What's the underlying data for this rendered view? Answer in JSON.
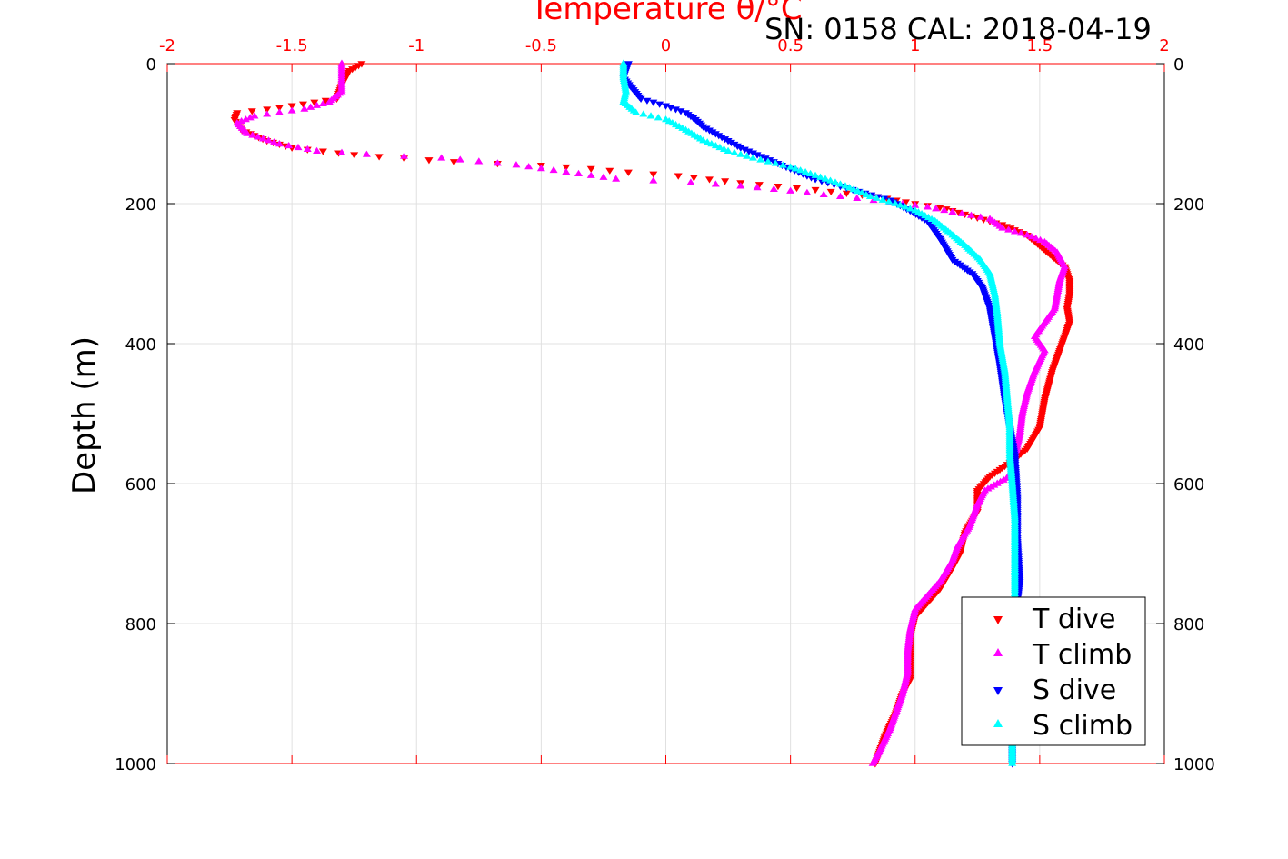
{
  "header": {
    "sn_cal": "SN: 0158  CAL: 2018-04-19"
  },
  "chart_data": {
    "type": "scatter",
    "title": "Temperature θ/°C",
    "xlabel_top": "Temperature θ/°C",
    "ylabel": "Depth (m)",
    "xlim": [
      -2,
      2
    ],
    "ylim": [
      0,
      1000
    ],
    "y_reversed": true,
    "x_ticks": [
      "-2",
      "-1.5",
      "-1",
      "-0.5",
      "0",
      "0.5",
      "1",
      "1.5",
      "2"
    ],
    "y_ticks": [
      "0",
      "200",
      "400",
      "600",
      "800",
      "1000"
    ],
    "grid": true,
    "legend_position": "bottom-right",
    "colors": {
      "axis_top": "#ff0000",
      "t_dive": "#ff0000",
      "t_climb": "#ff00ff",
      "s_dive": "#0000ff",
      "s_climb": "#00ffff"
    },
    "series": [
      {
        "name": "T dive",
        "marker": "triangle-down",
        "color": "#ff0000",
        "points": [
          [
            -1.22,
            0
          ],
          [
            -1.27,
            10
          ],
          [
            -1.3,
            30
          ],
          [
            -1.32,
            50
          ],
          [
            -1.5,
            60
          ],
          [
            -1.6,
            65
          ],
          [
            -1.72,
            70
          ],
          [
            -1.73,
            80
          ],
          [
            -1.7,
            95
          ],
          [
            -1.6,
            110
          ],
          [
            -1.5,
            120
          ],
          [
            -1.25,
            130
          ],
          [
            -0.85,
            140
          ],
          [
            -0.5,
            145
          ],
          [
            -0.3,
            150
          ],
          [
            -0.15,
            155
          ],
          [
            0.05,
            160
          ],
          [
            0.3,
            170
          ],
          [
            0.6,
            180
          ],
          [
            0.85,
            190
          ],
          [
            1.0,
            200
          ],
          [
            1.1,
            205
          ],
          [
            1.25,
            220
          ],
          [
            1.35,
            230
          ],
          [
            1.45,
            245
          ],
          [
            1.5,
            260
          ],
          [
            1.55,
            275
          ],
          [
            1.6,
            290
          ],
          [
            1.62,
            310
          ],
          [
            1.62,
            330
          ],
          [
            1.61,
            350
          ],
          [
            1.62,
            370
          ],
          [
            1.6,
            390
          ],
          [
            1.58,
            410
          ],
          [
            1.55,
            440
          ],
          [
            1.52,
            480
          ],
          [
            1.5,
            520
          ],
          [
            1.45,
            550
          ],
          [
            1.38,
            570
          ],
          [
            1.3,
            590
          ],
          [
            1.25,
            610
          ],
          [
            1.25,
            640
          ],
          [
            1.2,
            670
          ],
          [
            1.18,
            700
          ],
          [
            1.15,
            720
          ],
          [
            1.1,
            750
          ],
          [
            1.05,
            770
          ],
          [
            1.0,
            790
          ],
          [
            0.98,
            820
          ],
          [
            0.98,
            850
          ],
          [
            0.98,
            880
          ],
          [
            0.95,
            900
          ],
          [
            0.92,
            930
          ],
          [
            0.88,
            960
          ],
          [
            0.86,
            980
          ],
          [
            0.84,
            1000
          ]
        ]
      },
      {
        "name": "T climb",
        "marker": "triangle-up",
        "color": "#ff00ff",
        "points": [
          [
            -1.3,
            0
          ],
          [
            -1.3,
            20
          ],
          [
            -1.3,
            40
          ],
          [
            -1.35,
            55
          ],
          [
            -1.45,
            65
          ],
          [
            -1.55,
            70
          ],
          [
            -1.65,
            75
          ],
          [
            -1.72,
            85
          ],
          [
            -1.68,
            100
          ],
          [
            -1.55,
            115
          ],
          [
            -1.4,
            125
          ],
          [
            -1.2,
            130
          ],
          [
            -0.9,
            135
          ],
          [
            -0.6,
            145
          ],
          [
            -0.4,
            155
          ],
          [
            -0.2,
            165
          ],
          [
            0.1,
            170
          ],
          [
            0.3,
            175
          ],
          [
            0.5,
            182
          ],
          [
            0.7,
            190
          ],
          [
            0.9,
            198
          ],
          [
            1.05,
            205
          ],
          [
            1.15,
            212
          ],
          [
            1.3,
            222
          ],
          [
            1.35,
            235
          ],
          [
            1.45,
            245
          ],
          [
            1.52,
            255
          ],
          [
            1.57,
            270
          ],
          [
            1.6,
            290
          ],
          [
            1.58,
            310
          ],
          [
            1.57,
            330
          ],
          [
            1.56,
            350
          ],
          [
            1.52,
            370
          ],
          [
            1.48,
            390
          ],
          [
            1.52,
            410
          ],
          [
            1.48,
            440
          ],
          [
            1.45,
            470
          ],
          [
            1.43,
            500
          ],
          [
            1.42,
            530
          ],
          [
            1.4,
            560
          ],
          [
            1.38,
            590
          ],
          [
            1.28,
            610
          ],
          [
            1.25,
            630
          ],
          [
            1.22,
            660
          ],
          [
            1.17,
            690
          ],
          [
            1.15,
            710
          ],
          [
            1.1,
            740
          ],
          [
            1.05,
            760
          ],
          [
            1.0,
            780
          ],
          [
            0.98,
            810
          ],
          [
            0.97,
            840
          ],
          [
            0.97,
            870
          ],
          [
            0.95,
            900
          ],
          [
            0.93,
            920
          ],
          [
            0.9,
            950
          ],
          [
            0.86,
            980
          ],
          [
            0.83,
            1000
          ]
        ]
      },
      {
        "name": "S dive",
        "marker": "triangle-down",
        "color": "#0000ff",
        "points": [
          [
            -0.15,
            0
          ],
          [
            -0.17,
            20
          ],
          [
            -0.1,
            50
          ],
          [
            0.0,
            60
          ],
          [
            0.08,
            70
          ],
          [
            0.12,
            80
          ],
          [
            0.15,
            90
          ],
          [
            0.2,
            100
          ],
          [
            0.25,
            110
          ],
          [
            0.3,
            120
          ],
          [
            0.4,
            135
          ],
          [
            0.5,
            150
          ],
          [
            0.6,
            165
          ],
          [
            0.7,
            175
          ],
          [
            0.8,
            185
          ],
          [
            0.9,
            195
          ],
          [
            0.98,
            210
          ],
          [
            1.05,
            225
          ],
          [
            1.1,
            250
          ],
          [
            1.15,
            280
          ],
          [
            1.23,
            300
          ],
          [
            1.27,
            320
          ],
          [
            1.3,
            350
          ],
          [
            1.32,
            390
          ],
          [
            1.34,
            430
          ],
          [
            1.36,
            480
          ],
          [
            1.38,
            520
          ],
          [
            1.4,
            560
          ],
          [
            1.41,
            620
          ],
          [
            1.41,
            680
          ],
          [
            1.42,
            740
          ],
          [
            1.4,
            800
          ],
          [
            1.4,
            860
          ],
          [
            1.39,
            920
          ],
          [
            1.39,
            970
          ],
          [
            1.39,
            1000
          ]
        ]
      },
      {
        "name": "S climb",
        "marker": "triangle-up",
        "color": "#00ffff",
        "points": [
          [
            -0.17,
            0
          ],
          [
            -0.17,
            20
          ],
          [
            -0.16,
            40
          ],
          [
            -0.17,
            55
          ],
          [
            -0.12,
            70
          ],
          [
            0.0,
            80
          ],
          [
            0.08,
            95
          ],
          [
            0.15,
            110
          ],
          [
            0.25,
            125
          ],
          [
            0.35,
            135
          ],
          [
            0.5,
            148
          ],
          [
            0.6,
            160
          ],
          [
            0.72,
            175
          ],
          [
            0.82,
            190
          ],
          [
            0.92,
            200
          ],
          [
            1.0,
            210
          ],
          [
            1.08,
            225
          ],
          [
            1.15,
            245
          ],
          [
            1.2,
            260
          ],
          [
            1.26,
            280
          ],
          [
            1.3,
            300
          ],
          [
            1.32,
            330
          ],
          [
            1.33,
            360
          ],
          [
            1.34,
            400
          ],
          [
            1.36,
            440
          ],
          [
            1.37,
            480
          ],
          [
            1.38,
            520
          ],
          [
            1.38,
            560
          ],
          [
            1.39,
            600
          ],
          [
            1.4,
            650
          ],
          [
            1.4,
            700
          ],
          [
            1.4,
            750
          ],
          [
            1.4,
            800
          ],
          [
            1.4,
            850
          ],
          [
            1.39,
            900
          ],
          [
            1.39,
            950
          ],
          [
            1.39,
            1000
          ]
        ]
      }
    ]
  }
}
